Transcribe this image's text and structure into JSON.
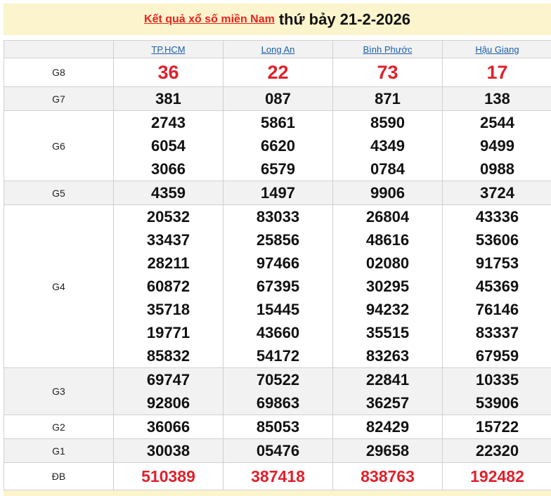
{
  "title": {
    "link": "Kết quả xổ số miền Nam",
    "date": "thứ bảy 21-2-2026"
  },
  "provinces": [
    "TP.HCM",
    "Long An",
    "Bình Phước",
    "Hậu Giang"
  ],
  "rows": [
    {
      "label": "G8",
      "style": "red",
      "values": [
        [
          "36"
        ],
        [
          "22"
        ],
        [
          "73"
        ],
        [
          "17"
        ]
      ]
    },
    {
      "label": "G7",
      "values": [
        [
          "381"
        ],
        [
          "087"
        ],
        [
          "871"
        ],
        [
          "138"
        ]
      ]
    },
    {
      "label": "G6",
      "values": [
        [
          "2743",
          "6054",
          "3066"
        ],
        [
          "5861",
          "6620",
          "6579"
        ],
        [
          "8590",
          "4349",
          "0784"
        ],
        [
          "2544",
          "9499",
          "0988"
        ]
      ]
    },
    {
      "label": "G5",
      "values": [
        [
          "4359"
        ],
        [
          "1497"
        ],
        [
          "9906"
        ],
        [
          "3724"
        ]
      ]
    },
    {
      "label": "G4",
      "values": [
        [
          "20532",
          "33437",
          "28211",
          "60872",
          "35718",
          "19771",
          "85832"
        ],
        [
          "83033",
          "25856",
          "97466",
          "67395",
          "15445",
          "43660",
          "54172"
        ],
        [
          "26804",
          "48616",
          "02080",
          "30295",
          "94232",
          "35515",
          "83263"
        ],
        [
          "43336",
          "53606",
          "91753",
          "45369",
          "76146",
          "83337",
          "67959"
        ]
      ]
    },
    {
      "label": "G3",
      "values": [
        [
          "69747",
          "92806"
        ],
        [
          "70522",
          "69863"
        ],
        [
          "22841",
          "36257"
        ],
        [
          "10335",
          "53906"
        ]
      ]
    },
    {
      "label": "G2",
      "values": [
        [
          "36066"
        ],
        [
          "85053"
        ],
        [
          "82429"
        ],
        [
          "15722"
        ]
      ]
    },
    {
      "label": "G1",
      "values": [
        [
          "30038"
        ],
        [
          "05476"
        ],
        [
          "29658"
        ],
        [
          "22320"
        ]
      ]
    },
    {
      "label": "ĐB",
      "style": "db",
      "values": [
        [
          "510389"
        ],
        [
          "387418"
        ],
        [
          "838763"
        ],
        [
          "192482"
        ]
      ]
    }
  ],
  "colors": {
    "accent_red": "#e0202a",
    "link_blue": "#1a5eaa",
    "title_bg": "#fcf4cc"
  }
}
